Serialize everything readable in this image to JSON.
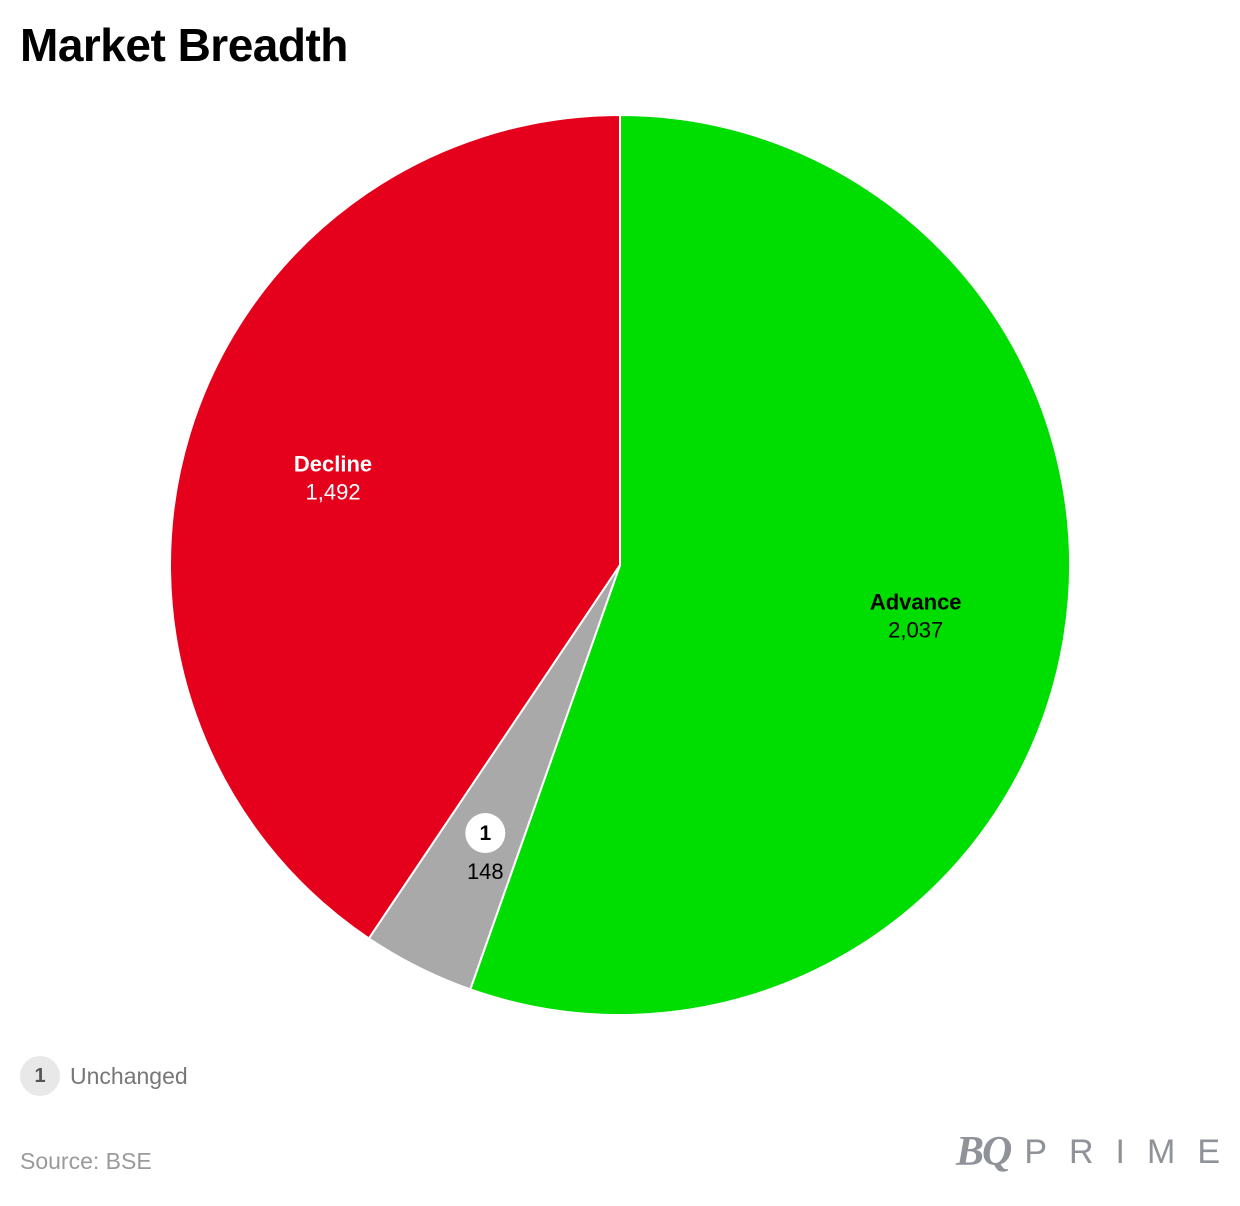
{
  "title": "Market Breadth",
  "chart_data": {
    "type": "pie",
    "slices": [
      {
        "label": "Advance",
        "value": 2037,
        "display": "2,037",
        "color": "#00dd00",
        "label_color": "#000000"
      },
      {
        "label": "Unchanged",
        "value": 148,
        "display": "148",
        "color": "#a9a9a9",
        "label_color": "#000000",
        "marker": "1"
      },
      {
        "label": "Decline",
        "value": 1492,
        "display": "1,492",
        "color": "#e5001b",
        "label_color": "#ffffff"
      }
    ]
  },
  "legend": {
    "marker": "1",
    "label": "Unchanged"
  },
  "source": "Source: BSE",
  "brand": {
    "bq": "BQ",
    "prime": "PRIME"
  }
}
